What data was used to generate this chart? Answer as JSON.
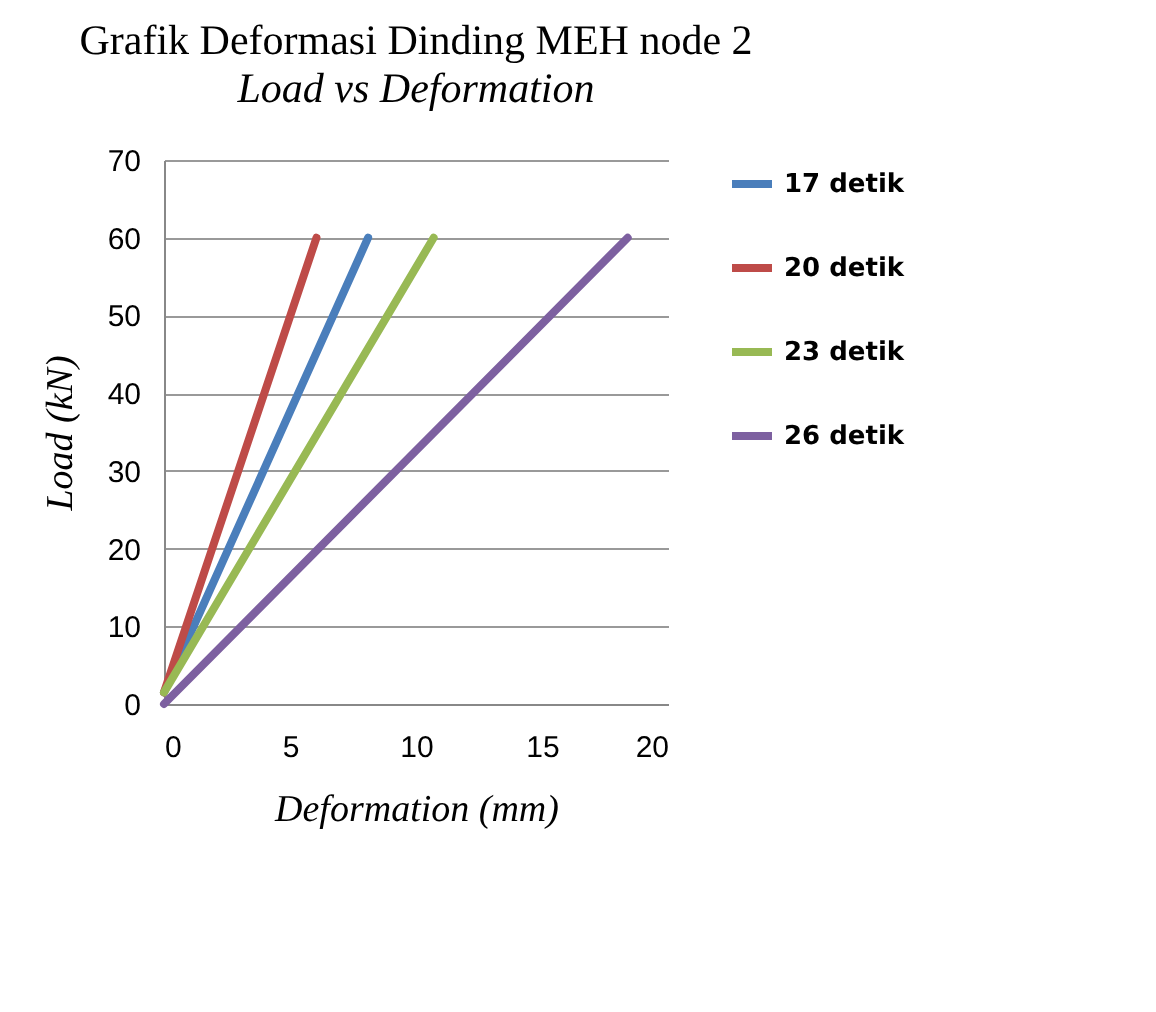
{
  "chart_data": {
    "type": "line",
    "title": "Grafik Deformasi Dinding MEH node 2",
    "subtitle": "Load vs Deformation",
    "xlabel": "Deformation (mm)",
    "ylabel": "Load (kN)",
    "xlim": [
      0,
      20
    ],
    "xticks": [
      0,
      5,
      10,
      15,
      20
    ],
    "ylim": [
      0,
      70
    ],
    "yticks": [
      0,
      10,
      20,
      30,
      40,
      50,
      60,
      70
    ],
    "grid": "y",
    "legend": "right",
    "marker": "none",
    "line_style": "solid",
    "series": [
      {
        "name": "17 detik",
        "color": "#4a7ebb",
        "x": [
          0,
          8.1
        ],
        "values": [
          1.5,
          60
        ]
      },
      {
        "name": "20 detik",
        "color": "#be4b48",
        "x": [
          0,
          6.05
        ],
        "values": [
          1.5,
          60
        ]
      },
      {
        "name": "23 detik",
        "color": "#98b954",
        "x": [
          0,
          10.7
        ],
        "values": [
          1.5,
          60
        ]
      },
      {
        "name": "26 detik",
        "color": "#7d60a0",
        "x": [
          0,
          18.4
        ],
        "values": [
          0,
          60
        ]
      }
    ]
  }
}
